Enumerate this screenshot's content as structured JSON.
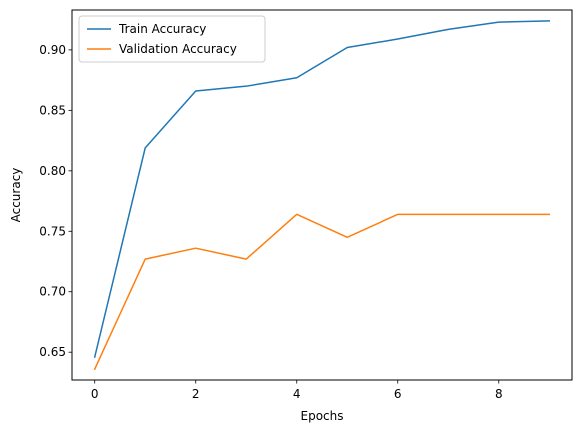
{
  "chart_data": {
    "type": "line",
    "title": "",
    "xlabel": "Epochs",
    "ylabel": "Accuracy",
    "x": [
      0,
      1,
      2,
      3,
      4,
      5,
      6,
      7,
      8,
      9
    ],
    "xlim": [
      -0.45,
      9.45
    ],
    "ylim": [
      0.627,
      0.933
    ],
    "xticks": [
      0,
      2,
      4,
      6,
      8
    ],
    "yticks": [
      0.65,
      0.7,
      0.75,
      0.8,
      0.85,
      0.9
    ],
    "xtick_labels": [
      "0",
      "2",
      "4",
      "6",
      "8"
    ],
    "ytick_labels": [
      "0.65",
      "0.70",
      "0.75",
      "0.80",
      "0.85",
      "0.90"
    ],
    "grid": false,
    "legend_position": "top-left",
    "series": [
      {
        "name": "Train Accuracy",
        "color": "#1f77b4",
        "values": [
          0.646,
          0.819,
          0.866,
          0.87,
          0.877,
          0.902,
          0.909,
          0.917,
          0.923,
          0.924
        ]
      },
      {
        "name": "Validation Accuracy",
        "color": "#ff7f0e",
        "values": [
          0.636,
          0.727,
          0.736,
          0.727,
          0.764,
          0.745,
          0.764,
          0.764,
          0.764,
          0.764
        ]
      }
    ]
  }
}
